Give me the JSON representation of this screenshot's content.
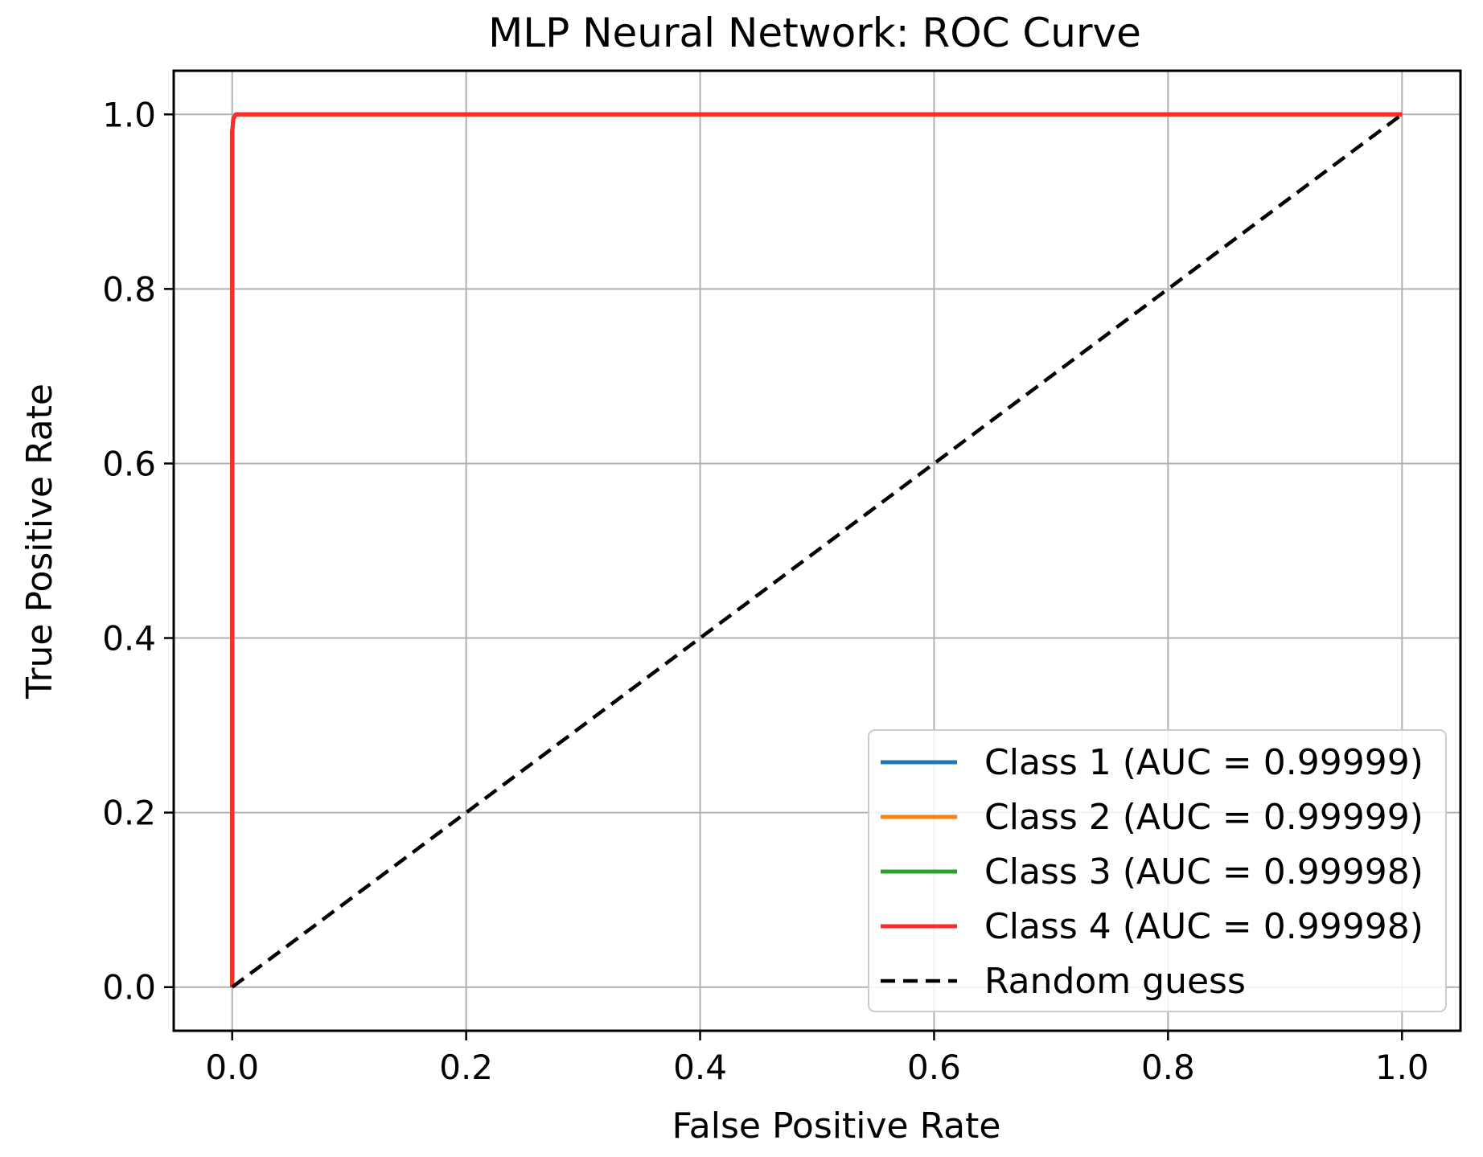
{
  "chart_data": {
    "type": "line",
    "title": "MLP Neural Network: ROC Curve",
    "xlabel": "False Positive Rate",
    "ylabel": "True Positive Rate",
    "xlim": [
      -0.05,
      1.05
    ],
    "ylim": [
      -0.05,
      1.05
    ],
    "xticks": [
      "0.0",
      "0.2",
      "0.4",
      "0.6",
      "0.8",
      "1.0"
    ],
    "yticks": [
      "0.0",
      "0.2",
      "0.4",
      "0.6",
      "0.8",
      "1.0"
    ],
    "grid": true,
    "legend_position": "lower-right",
    "series": [
      {
        "name": "Class 1 (AUC = 0.99999)",
        "color": "#1f77b4",
        "style": "solid",
        "x": [
          0.0,
          0.0,
          0.001,
          0.003,
          1.0
        ],
        "y": [
          0.0,
          0.98,
          0.995,
          1.0,
          1.0
        ]
      },
      {
        "name": "Class 2 (AUC = 0.99999)",
        "color": "#ff7f0e",
        "style": "solid",
        "x": [
          0.0,
          0.0,
          0.001,
          0.003,
          1.0
        ],
        "y": [
          0.0,
          0.98,
          0.995,
          1.0,
          1.0
        ]
      },
      {
        "name": "Class 3 (AUC = 0.99998)",
        "color": "#2ca02c",
        "style": "solid",
        "x": [
          0.0,
          0.0,
          0.001,
          0.003,
          1.0
        ],
        "y": [
          0.0,
          0.98,
          0.995,
          1.0,
          1.0
        ]
      },
      {
        "name": "Class 4 (AUC = 0.99998)",
        "color": "#ff2a2a",
        "style": "solid",
        "x": [
          0.0,
          0.0,
          0.001,
          0.003,
          1.0
        ],
        "y": [
          0.0,
          0.98,
          0.995,
          1.0,
          1.0
        ]
      },
      {
        "name": "Random guess",
        "color": "#000000",
        "style": "dashed",
        "x": [
          0.0,
          1.0
        ],
        "y": [
          0.0,
          1.0
        ]
      }
    ]
  }
}
